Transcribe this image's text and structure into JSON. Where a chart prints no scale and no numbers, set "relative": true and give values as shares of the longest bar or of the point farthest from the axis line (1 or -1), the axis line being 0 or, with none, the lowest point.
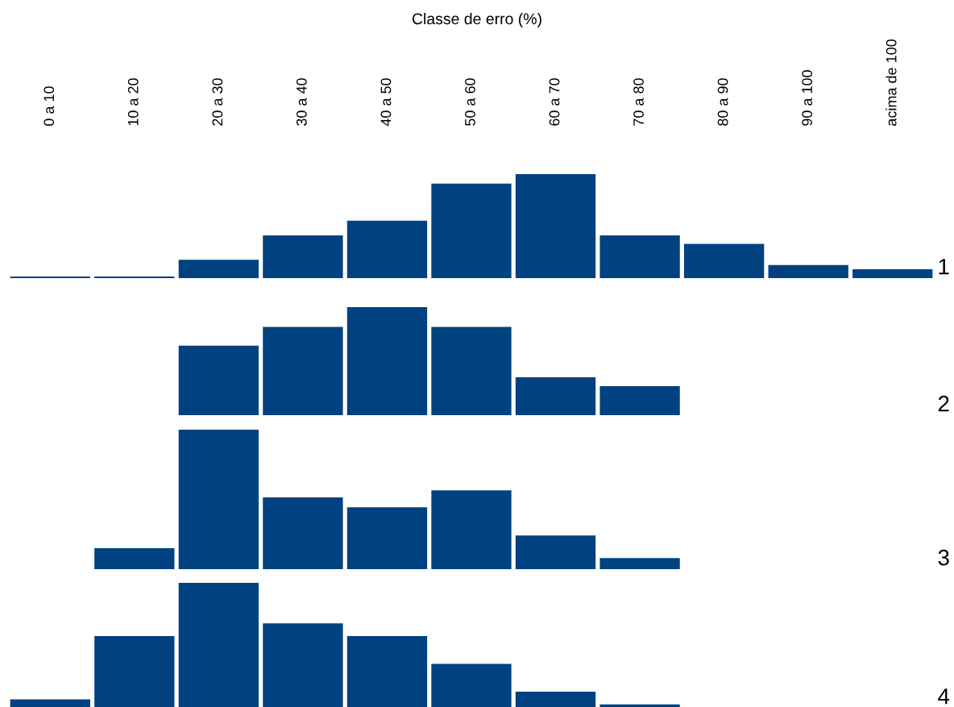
{
  "chart_data": [
    {
      "type": "bar",
      "xlabel": "Classe de erro (%)",
      "categories": [
        "0 a 10",
        "10 a 20",
        "20 a 30",
        "30 a 40",
        "40 a 50",
        "50 a 60",
        "60 a 70",
        "70 a 80",
        "80 a 90",
        "90 a 100",
        "acima de 100"
      ],
      "values": [
        0.03,
        0.03,
        0.19,
        0.42,
        0.56,
        0.91,
        1,
        0.42,
        0.34,
        0.14,
        0.1
      ],
      "color": "#00427f",
      "relative": true,
      "tick_labels": "x",
      "annotations": [
        "1"
      ]
    },
    {
      "type": "bar",
      "categories": [
        null,
        null,
        null,
        null,
        null,
        null,
        null,
        null,
        null,
        null,
        null
      ],
      "values": [
        null,
        null,
        0.65,
        0.82,
        1,
        0.82,
        0.36,
        0.28,
        null,
        null,
        null
      ],
      "color": "#00427f",
      "relative": true,
      "tick_labels": false,
      "annotations": [
        "2"
      ]
    },
    {
      "type": "bar",
      "categories": [
        null,
        null,
        null,
        null,
        null,
        null,
        null,
        null,
        null,
        null,
        null
      ],
      "values": [
        null,
        0.16,
        1,
        0.52,
        0.45,
        0.57,
        0.25,
        0.09,
        null,
        null,
        null
      ],
      "color": "#00427f",
      "relative": true,
      "tick_labels": false,
      "annotations": [
        "3"
      ]
    },
    {
      "type": "bar",
      "categories": [
        null,
        null,
        null,
        null,
        null,
        null,
        null,
        null,
        null,
        null,
        null
      ],
      "values": [
        0.08,
        0.58,
        1,
        0.68,
        0.58,
        0.36,
        0.14,
        0.04,
        null,
        null,
        null
      ],
      "color": "#00427f",
      "relative": true,
      "tick_labels": false,
      "annotations": [
        "4"
      ]
    }
  ]
}
